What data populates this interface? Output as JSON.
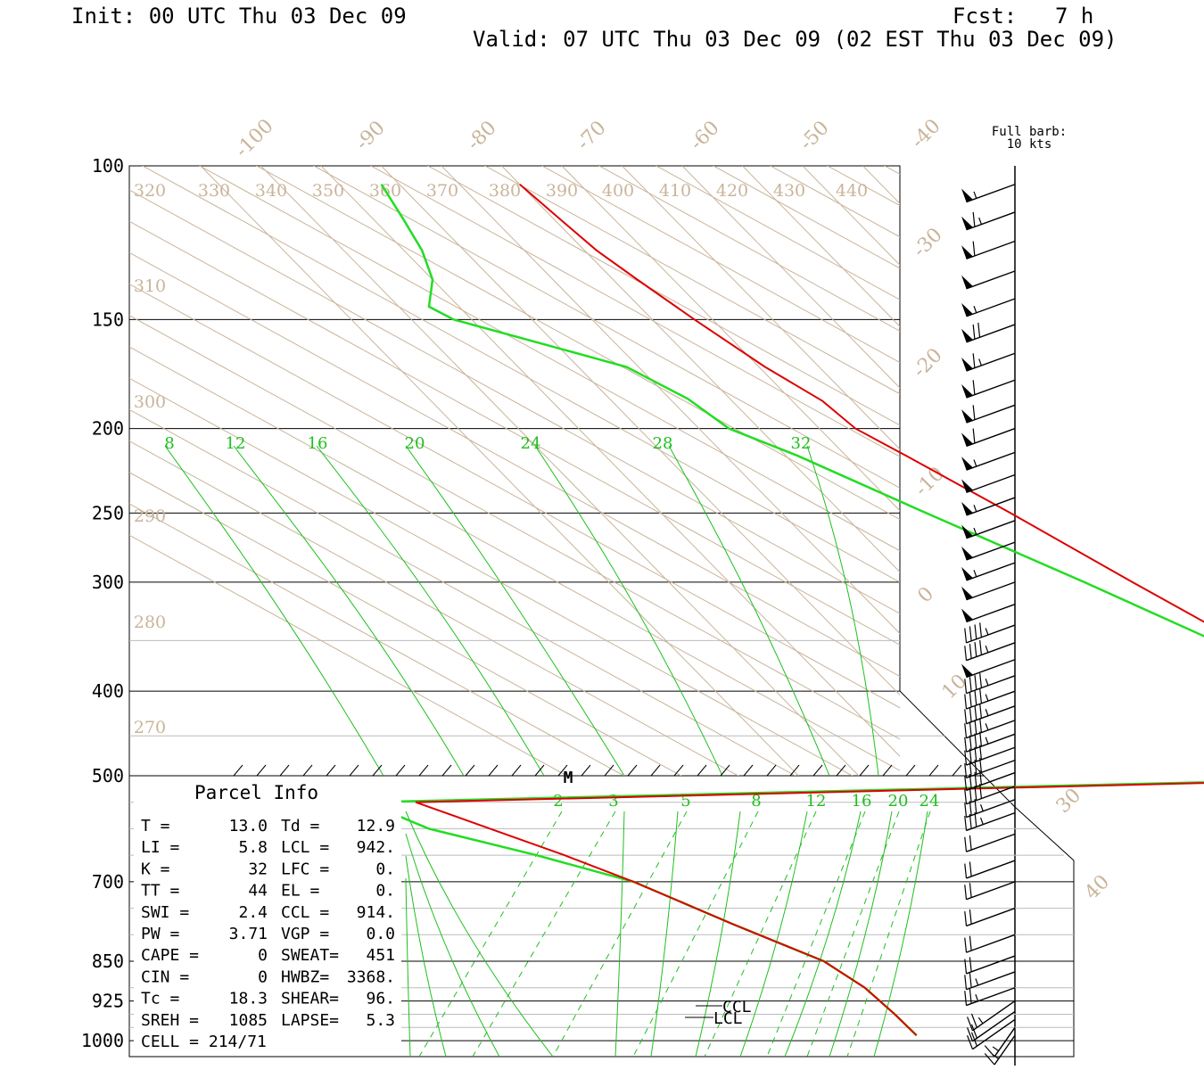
{
  "header": {
    "init": "Init: 00 UTC Thu 03 Dec 09",
    "fcst_label": "Fcst:",
    "fcst_value": "7 h",
    "valid": "Valid: 07 UTC Thu 03 Dec 09 (02 EST Thu 03 Dec 09)"
  },
  "barb_key": {
    "line1": "Full barb:",
    "line2": "10 kts"
  },
  "colors": {
    "temperature": "#dd0000",
    "dewpoint": "#22dd22",
    "mixing_ratio": "#1fbf1f",
    "dry_adiabat": "#c9b49a",
    "isobar": "#000000",
    "barb": "#000000"
  },
  "parcel_info": {
    "title": "Parcel Info",
    "rows": [
      {
        "l1": "T   =",
        "v1": "13.0",
        "l2": "Td =",
        "v2": "12.9"
      },
      {
        "l1": "LI  =",
        "v1": "5.8",
        "l2": "LCL =",
        "v2": "942."
      },
      {
        "l1": "K   =",
        "v1": "32",
        "l2": "LFC =",
        "v2": "0."
      },
      {
        "l1": "TT  =",
        "v1": "44",
        "l2": "EL  =",
        "v2": "0."
      },
      {
        "l1": "SWI =",
        "v1": "2.4",
        "l2": "CCL =",
        "v2": "914."
      },
      {
        "l1": "PW  =",
        "v1": "3.71",
        "l2": "VGP =",
        "v2": "0.0"
      },
      {
        "l1": "CAPE =",
        "v1": "0",
        "l2": "SWEAT=",
        "v2": "451"
      },
      {
        "l1": "CIN  =",
        "v1": "0",
        "l2": "HWBZ=",
        "v2": "3368."
      },
      {
        "l1": "Tc  =",
        "v1": "18.3",
        "l2": "SHEAR=",
        "v2": "96."
      },
      {
        "l1": "SREH =",
        "v1": "1085",
        "l2": "LAPSE=",
        "v2": "5.3"
      },
      {
        "l1": "CELL = 214/71",
        "v1": "",
        "l2": "",
        "v2": ""
      }
    ]
  },
  "markers": {
    "m": "M",
    "ccl": "CCL",
    "lcl": "LCL"
  },
  "chart_data": {
    "type": "line",
    "title": "",
    "pressure_levels_upper": [
      "100",
      "150",
      "200",
      "250",
      "300",
      "400",
      "500"
    ],
    "pressure_levels_lower": [
      "500",
      "700",
      "850",
      "925",
      "1000"
    ],
    "isotherm_labels": [
      "-100",
      "-90",
      "-80",
      "-70",
      "-60",
      "-50",
      "-40",
      "-30",
      "-20",
      "-10",
      "0",
      "10",
      "30",
      "40"
    ],
    "theta_labels_top": [
      "320",
      "330",
      "340",
      "350",
      "360",
      "370",
      "380",
      "390",
      "400",
      "410",
      "420",
      "430",
      "440"
    ],
    "theta_labels_left": [
      "310",
      "300",
      "290",
      "280",
      "270"
    ],
    "mixing_ratio_labels_upper": [
      "8",
      "12",
      "16",
      "20",
      "24",
      "28",
      "32"
    ],
    "mixing_ratio_labels_lower": [
      "2",
      "3",
      "5",
      "8",
      "12",
      "16",
      "20",
      "24"
    ],
    "series": [
      {
        "name": "T",
        "values": [
          {
            "p": 105,
            "t": -70
          },
          {
            "p": 115,
            "t": -69
          },
          {
            "p": 125,
            "t": -68
          },
          {
            "p": 135,
            "t": -66
          },
          {
            "p": 150,
            "t": -63
          },
          {
            "p": 170,
            "t": -59
          },
          {
            "p": 186,
            "t": -55
          },
          {
            "p": 200,
            "t": -54
          },
          {
            "p": 215,
            "t": -50
          },
          {
            "p": 250,
            "t": -42
          },
          {
            "p": 300,
            "t": -33
          },
          {
            "p": 350,
            "t": -25
          },
          {
            "p": 400,
            "t": -17.5
          },
          {
            "p": 450,
            "t": -10
          },
          {
            "p": 500,
            "t": -3
          },
          {
            "p": 550,
            "t": -0.5
          },
          {
            "p": 600,
            "t": 2.5
          },
          {
            "p": 650,
            "t": 5.5
          },
          {
            "p": 700,
            "t": 8
          },
          {
            "p": 780,
            "t": 11
          },
          {
            "p": 850,
            "t": 14
          },
          {
            "p": 900,
            "t": 14
          },
          {
            "p": 950,
            "t": 13
          },
          {
            "p": 990,
            "t": 12
          }
        ]
      },
      {
        "name": "Td",
        "values": [
          {
            "p": 105,
            "t": -93
          },
          {
            "p": 115,
            "t": -95
          },
          {
            "p": 125,
            "t": -97
          },
          {
            "p": 135,
            "t": -100
          },
          {
            "p": 145,
            "t": -105
          },
          {
            "p": 150,
            "t": -103
          },
          {
            "p": 170,
            "t": -82
          },
          {
            "p": 185,
            "t": -77
          },
          {
            "p": 200,
            "t": -75
          },
          {
            "p": 215,
            "t": -68
          },
          {
            "p": 250,
            "t": -56
          },
          {
            "p": 300,
            "t": -41
          },
          {
            "p": 350,
            "t": -29
          },
          {
            "p": 400,
            "t": -22
          },
          {
            "p": 450,
            "t": -16
          },
          {
            "p": 500,
            "t": -6.5
          },
          {
            "p": 550,
            "t": -5
          },
          {
            "p": 600,
            "t": -3
          },
          {
            "p": 650,
            "t": 3
          },
          {
            "p": 700,
            "t": 8
          },
          {
            "p": 780,
            "t": 11
          },
          {
            "p": 850,
            "t": 14
          },
          {
            "p": 900,
            "t": 14
          },
          {
            "p": 950,
            "t": 13
          },
          {
            "p": 990,
            "t": 12
          }
        ]
      }
    ],
    "wind_barbs": [
      {
        "p": 105,
        "kts": 55
      },
      {
        "p": 113,
        "kts": 65
      },
      {
        "p": 122,
        "kts": 60
      },
      {
        "p": 132,
        "kts": 50
      },
      {
        "p": 142,
        "kts": 55
      },
      {
        "p": 152,
        "kts": 70
      },
      {
        "p": 164,
        "kts": 65
      },
      {
        "p": 176,
        "kts": 60
      },
      {
        "p": 188,
        "kts": 60
      },
      {
        "p": 200,
        "kts": 60
      },
      {
        "p": 213,
        "kts": 55
      },
      {
        "p": 226,
        "kts": 50
      },
      {
        "p": 240,
        "kts": 55
      },
      {
        "p": 255,
        "kts": 55
      },
      {
        "p": 270,
        "kts": 50
      },
      {
        "p": 285,
        "kts": 55
      },
      {
        "p": 300,
        "kts": 50
      },
      {
        "p": 318,
        "kts": 50
      },
      {
        "p": 336,
        "kts": 45
      },
      {
        "p": 352,
        "kts": 45
      },
      {
        "p": 368,
        "kts": 50
      },
      {
        "p": 384,
        "kts": 45
      },
      {
        "p": 400,
        "kts": 45
      },
      {
        "p": 416,
        "kts": 45
      },
      {
        "p": 432,
        "kts": 45
      },
      {
        "p": 448,
        "kts": 45
      },
      {
        "p": 464,
        "kts": 40
      },
      {
        "p": 480,
        "kts": 40
      },
      {
        "p": 496,
        "kts": 40
      },
      {
        "p": 520,
        "kts": 40
      },
      {
        "p": 545,
        "kts": 35
      },
      {
        "p": 570,
        "kts": 35
      },
      {
        "p": 610,
        "kts": 20
      },
      {
        "p": 660,
        "kts": 20
      },
      {
        "p": 700,
        "kts": 20
      },
      {
        "p": 750,
        "kts": 20
      },
      {
        "p": 800,
        "kts": 20
      },
      {
        "p": 840,
        "kts": 20
      },
      {
        "p": 870,
        "kts": 25
      },
      {
        "p": 900,
        "kts": 25
      },
      {
        "p": 925,
        "kts": 25
      },
      {
        "p": 945,
        "kts": 20
      },
      {
        "p": 960,
        "kts": 20
      },
      {
        "p": 975,
        "kts": 15
      },
      {
        "p": 990,
        "kts": 15
      }
    ]
  }
}
